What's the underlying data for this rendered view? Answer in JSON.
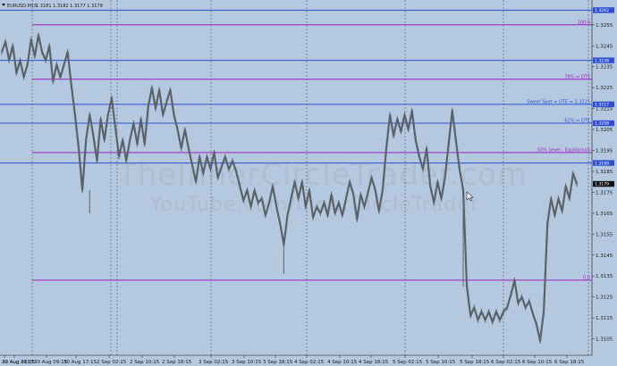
{
  "header": {
    "symbol": "EURUSD,M15",
    "ohlc": "1.3181 1.3182 1.3177 1.3179"
  },
  "watermark": {
    "line1": "TheInnerCircleTrader.com",
    "line2": "YouTube.com/InnerCircleTrader"
  },
  "colors": {
    "background": "#b4c9e0",
    "price": "#5a6268",
    "blue_level": "#2c4fd6",
    "purple_level": "#a020c0",
    "separator": "#3b3b3b"
  },
  "chart_data": {
    "type": "line",
    "series": [
      {
        "values": [
          1.3242,
          1.3247,
          1.3238,
          1.3245,
          1.3232,
          1.3238,
          1.323,
          1.3236,
          1.3248,
          1.324,
          1.325,
          1.3242,
          1.3238,
          1.3245,
          1.3228,
          1.3236,
          1.323,
          1.3236,
          1.3242,
          1.3226,
          1.3212,
          1.3196,
          1.3176,
          1.32,
          1.3212,
          1.3202,
          1.319,
          1.321,
          1.32,
          1.3212,
          1.322,
          1.3206,
          1.3192,
          1.32,
          1.319,
          1.32,
          1.3208,
          1.3198,
          1.321,
          1.3198,
          1.3216,
          1.3225,
          1.3215,
          1.3224,
          1.3212,
          1.3218,
          1.3224,
          1.3212,
          1.3205,
          1.3196,
          1.3205,
          1.3196,
          1.3188,
          1.318,
          1.3192,
          1.3184,
          1.3192,
          1.3186,
          1.3194,
          1.3182,
          1.3187,
          1.3192,
          1.3186,
          1.319,
          1.3185,
          1.3178,
          1.3171,
          1.3176,
          1.3168,
          1.3176,
          1.317,
          1.3172,
          1.3164,
          1.317,
          1.3178,
          1.3168,
          1.316,
          1.315,
          1.3164,
          1.3172,
          1.318,
          1.3172,
          1.318,
          1.3168,
          1.3176,
          1.3163,
          1.3168,
          1.3165,
          1.317,
          1.3164,
          1.3174,
          1.3165,
          1.317,
          1.3164,
          1.3172,
          1.318,
          1.3174,
          1.3162,
          1.3174,
          1.3168,
          1.3175,
          1.3182,
          1.3176,
          1.3166,
          1.3176,
          1.3196,
          1.3212,
          1.3202,
          1.321,
          1.3204,
          1.3212,
          1.3205,
          1.3214,
          1.32,
          1.3192,
          1.3186,
          1.3196,
          1.3178,
          1.317,
          1.318,
          1.3172,
          1.3182,
          1.3198,
          1.3214,
          1.32,
          1.3186,
          1.3176,
          1.313,
          1.3116,
          1.312,
          1.3114,
          1.3118,
          1.3114,
          1.3118,
          1.3113,
          1.3118,
          1.3114,
          1.3118,
          1.312,
          1.3126,
          1.3133,
          1.3122,
          1.3125,
          1.312,
          1.3123,
          1.3117,
          1.3112,
          1.3104,
          1.3118,
          1.316,
          1.3172,
          1.3164,
          1.3172,
          1.3166,
          1.3178,
          1.3172,
          1.3184,
          1.3179
        ]
      }
    ],
    "y_axis": {
      "ticks": [
        "1.3255",
        "1.3245",
        "1.3235",
        "1.3225",
        "1.3215",
        "1.3205",
        "1.3195",
        "1.3185",
        "1.3175",
        "1.3165",
        "1.3155",
        "1.3145",
        "1.3135",
        "1.3125",
        "1.3115",
        "1.3105"
      ],
      "range": [
        1.3098,
        1.3266
      ]
    },
    "x_axis": {
      "ticks": [
        "29 Aug 2013",
        "30 Aug 01:15",
        "30 Aug 09:15",
        "30 Aug 17:15",
        "2 Sep 02:15",
        "2 Sep 10:15",
        "2 Sep 18:15",
        "3 Sep 02:15",
        "3 Sep 10:15",
        "3 Sep 18:15",
        "4 Sep 02:15",
        "4 Sep 10:15",
        "4 Sep 18:15",
        "5 Sep 02:15",
        "5 Sep 10:15",
        "5 Sep 18:15",
        "6 Sep 02:15",
        "6 Sep 10:15",
        "6 Sep 18:15"
      ]
    },
    "levels": [
      {
        "price": 1.3262,
        "color": "blue",
        "tag": "1.3262"
      },
      {
        "price": 1.3255,
        "color": "purple",
        "label": "100.0"
      },
      {
        "price": 1.3238,
        "color": "blue",
        "tag": "1.3238"
      },
      {
        "price": 1.3229,
        "color": "purple",
        "label": "79% = OTE"
      },
      {
        "price": 1.3217,
        "color": "blue",
        "tag": "1.3217",
        "label": "Sweet Spot = OTE = 1.3215"
      },
      {
        "price": 1.3208,
        "color": "blue",
        "tag": "1.3208",
        "label": "62% = OTE"
      },
      {
        "price": 1.3194,
        "color": "purple",
        "label": "50% Level - Equilibrium"
      },
      {
        "price": 1.3189,
        "color": "blue",
        "tag": "1.3189"
      },
      {
        "price": 1.3133,
        "color": "purple",
        "label": "0.0"
      }
    ],
    "current_price_tag": "1.3179"
  }
}
